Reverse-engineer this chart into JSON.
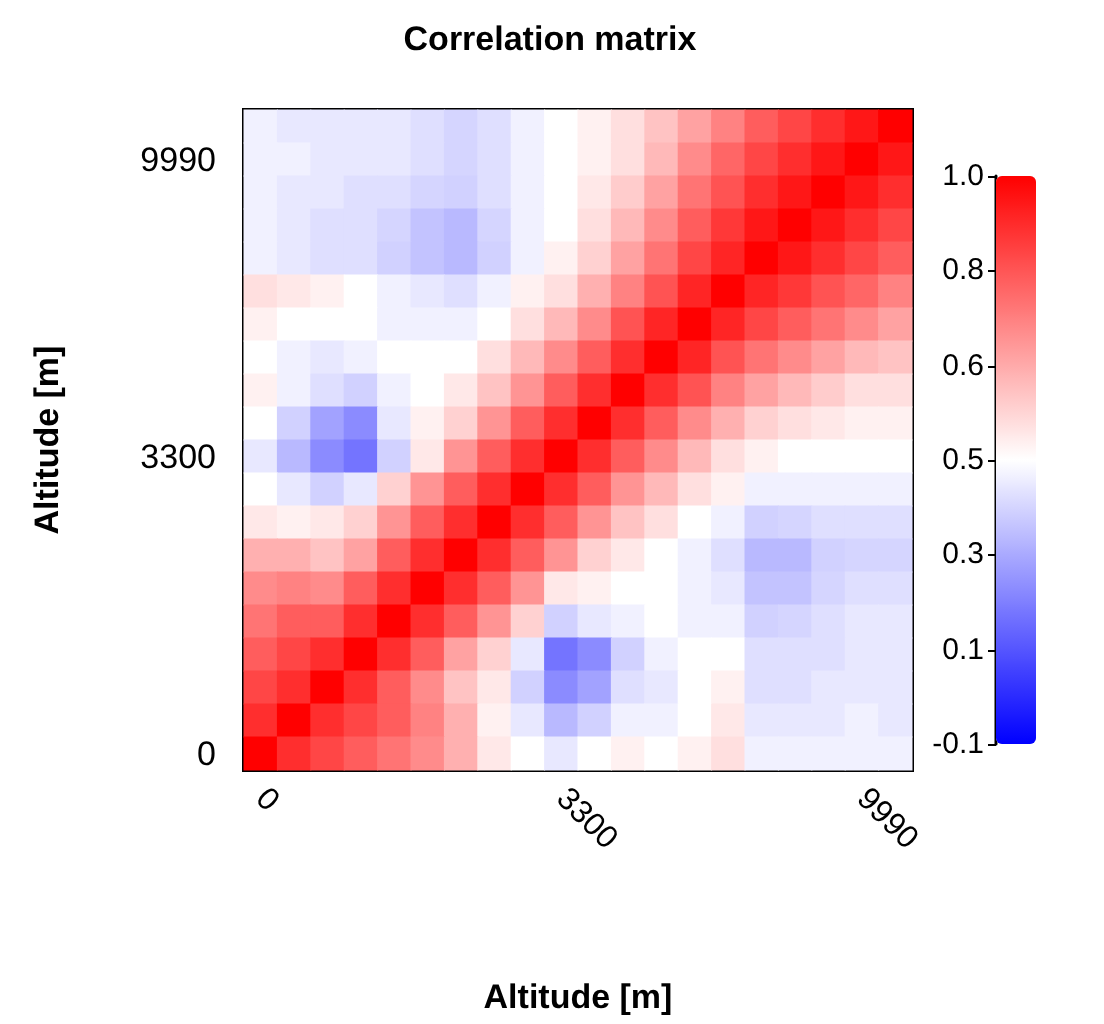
{
  "chart_data": {
    "type": "heatmap",
    "title": "Correlation matrix",
    "xlabel": "Altitude [m]",
    "ylabel": "Altitude [m]",
    "categories": [
      "0",
      null,
      null,
      null,
      null,
      null,
      null,
      null,
      null,
      "3300",
      null,
      null,
      null,
      null,
      null,
      null,
      null,
      null,
      "9990",
      null
    ],
    "y_categories": [
      null,
      "9990",
      null,
      null,
      null,
      null,
      null,
      null,
      null,
      null,
      "3300",
      null,
      null,
      null,
      null,
      null,
      null,
      null,
      null,
      "0"
    ],
    "cells": [
      [
        0.42,
        0.4,
        0.4,
        0.4,
        0.4,
        0.38,
        0.36,
        0.38,
        0.42,
        0.45,
        0.48,
        0.52,
        0.58,
        0.65,
        0.72,
        0.8,
        0.85,
        0.9,
        0.95,
        1.0
      ],
      [
        0.42,
        0.42,
        0.4,
        0.4,
        0.4,
        0.38,
        0.36,
        0.38,
        0.42,
        0.45,
        0.48,
        0.52,
        0.6,
        0.7,
        0.78,
        0.85,
        0.9,
        0.95,
        1.0,
        0.95
      ],
      [
        0.42,
        0.4,
        0.4,
        0.38,
        0.38,
        0.36,
        0.35,
        0.38,
        0.42,
        0.45,
        0.5,
        0.56,
        0.65,
        0.75,
        0.82,
        0.9,
        0.95,
        1.0,
        0.95,
        0.9
      ],
      [
        0.42,
        0.4,
        0.38,
        0.38,
        0.36,
        0.32,
        0.3,
        0.36,
        0.42,
        0.45,
        0.52,
        0.6,
        0.7,
        0.8,
        0.88,
        0.95,
        1.0,
        0.95,
        0.9,
        0.85
      ],
      [
        0.42,
        0.4,
        0.38,
        0.38,
        0.35,
        0.32,
        0.3,
        0.35,
        0.42,
        0.48,
        0.55,
        0.65,
        0.75,
        0.85,
        0.92,
        1.0,
        0.95,
        0.9,
        0.85,
        0.8
      ],
      [
        0.52,
        0.5,
        0.48,
        0.45,
        0.42,
        0.4,
        0.38,
        0.42,
        0.48,
        0.52,
        0.62,
        0.72,
        0.82,
        0.92,
        1.0,
        0.92,
        0.88,
        0.82,
        0.78,
        0.72
      ],
      [
        0.48,
        0.45,
        0.45,
        0.45,
        0.42,
        0.42,
        0.42,
        0.45,
        0.52,
        0.6,
        0.7,
        0.82,
        0.92,
        1.0,
        0.92,
        0.85,
        0.8,
        0.75,
        0.7,
        0.65
      ],
      [
        0.45,
        0.42,
        0.4,
        0.42,
        0.45,
        0.45,
        0.45,
        0.52,
        0.6,
        0.7,
        0.8,
        0.9,
        1.0,
        0.92,
        0.82,
        0.75,
        0.7,
        0.65,
        0.6,
        0.58
      ],
      [
        0.48,
        0.42,
        0.38,
        0.35,
        0.42,
        0.45,
        0.5,
        0.58,
        0.68,
        0.8,
        0.9,
        1.0,
        0.9,
        0.82,
        0.72,
        0.65,
        0.6,
        0.56,
        0.52,
        0.52
      ],
      [
        0.45,
        0.35,
        0.25,
        0.2,
        0.4,
        0.48,
        0.55,
        0.68,
        0.8,
        0.9,
        1.0,
        0.9,
        0.8,
        0.7,
        0.62,
        0.55,
        0.52,
        0.5,
        0.48,
        0.48
      ],
      [
        0.4,
        0.3,
        0.2,
        0.15,
        0.35,
        0.5,
        0.68,
        0.8,
        0.9,
        1.0,
        0.9,
        0.8,
        0.7,
        0.6,
        0.52,
        0.48,
        0.45,
        0.45,
        0.45,
        0.45
      ],
      [
        0.45,
        0.4,
        0.35,
        0.4,
        0.55,
        0.68,
        0.8,
        0.9,
        1.0,
        0.9,
        0.8,
        0.68,
        0.6,
        0.52,
        0.48,
        0.42,
        0.42,
        0.42,
        0.42,
        0.42
      ],
      [
        0.5,
        0.48,
        0.5,
        0.55,
        0.68,
        0.8,
        0.9,
        1.0,
        0.9,
        0.8,
        0.68,
        0.58,
        0.52,
        0.45,
        0.42,
        0.35,
        0.36,
        0.38,
        0.38,
        0.38
      ],
      [
        0.62,
        0.62,
        0.58,
        0.65,
        0.8,
        0.9,
        1.0,
        0.9,
        0.8,
        0.68,
        0.55,
        0.5,
        0.45,
        0.42,
        0.38,
        0.3,
        0.3,
        0.35,
        0.36,
        0.36
      ],
      [
        0.7,
        0.72,
        0.7,
        0.8,
        0.9,
        1.0,
        0.9,
        0.8,
        0.68,
        0.5,
        0.48,
        0.45,
        0.45,
        0.42,
        0.4,
        0.32,
        0.32,
        0.36,
        0.38,
        0.38
      ],
      [
        0.75,
        0.8,
        0.8,
        0.9,
        1.0,
        0.9,
        0.8,
        0.68,
        0.55,
        0.35,
        0.4,
        0.42,
        0.45,
        0.42,
        0.42,
        0.35,
        0.36,
        0.38,
        0.4,
        0.4
      ],
      [
        0.8,
        0.85,
        0.9,
        1.0,
        0.9,
        0.8,
        0.65,
        0.55,
        0.4,
        0.15,
        0.2,
        0.35,
        0.42,
        0.45,
        0.45,
        0.38,
        0.38,
        0.38,
        0.4,
        0.4
      ],
      [
        0.85,
        0.9,
        1.0,
        0.9,
        0.8,
        0.7,
        0.58,
        0.5,
        0.35,
        0.2,
        0.25,
        0.38,
        0.4,
        0.45,
        0.48,
        0.38,
        0.38,
        0.4,
        0.4,
        0.4
      ],
      [
        0.9,
        1.0,
        0.9,
        0.85,
        0.8,
        0.72,
        0.62,
        0.48,
        0.4,
        0.3,
        0.35,
        0.42,
        0.42,
        0.45,
        0.5,
        0.4,
        0.4,
        0.4,
        0.42,
        0.4
      ],
      [
        1.0,
        0.9,
        0.85,
        0.8,
        0.75,
        0.7,
        0.62,
        0.5,
        0.45,
        0.4,
        0.45,
        0.48,
        0.45,
        0.48,
        0.52,
        0.42,
        0.42,
        0.42,
        0.42,
        0.42
      ]
    ],
    "clim": [
      -0.1,
      1.0
    ],
    "cticks": [
      {
        "value": -0.1,
        "label": "-0.1"
      },
      {
        "value": 0.083,
        "label": "0.1"
      },
      {
        "value": 0.267,
        "label": "0.3"
      },
      {
        "value": 0.45,
        "label": "0.5"
      },
      {
        "value": 0.633,
        "label": "0.6"
      },
      {
        "value": 0.817,
        "label": "0.8"
      },
      {
        "value": 1.0,
        "label": "1.0"
      }
    ]
  }
}
